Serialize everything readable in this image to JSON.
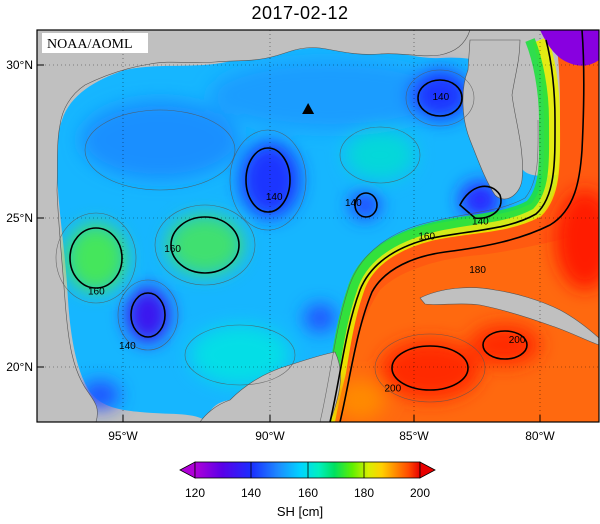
{
  "title": "2017-02-12",
  "source_label": "NOAA/AOML",
  "colorbar": {
    "label": "SH [cm]",
    "ticks": [
      "120",
      "140",
      "160",
      "180",
      "200"
    ],
    "range": [
      120,
      200
    ],
    "colors": [
      "#b000d8",
      "#5a00e8",
      "#1a2dff",
      "#1d8bff",
      "#00d4ff",
      "#00f0c0",
      "#00e060",
      "#60f000",
      "#d8f000",
      "#ffd000",
      "#ff8c00",
      "#ff4a00",
      "#e80000"
    ]
  },
  "axes": {
    "lat_labels": [
      "30°N",
      "25°N",
      "20°N"
    ],
    "lon_labels": [
      "95°W",
      "90°W",
      "85°W",
      "80°W"
    ]
  },
  "contour_labels": [
    {
      "text": "140",
      "lon": -83.6,
      "lat": 28.9
    },
    {
      "text": "140",
      "lon": -89.5,
      "lat": 25.6
    },
    {
      "text": "140",
      "lon": -86.7,
      "lat": 25.4
    },
    {
      "text": "140",
      "lon": -82.2,
      "lat": 24.8
    },
    {
      "text": "160",
      "lon": -93.1,
      "lat": 23.9
    },
    {
      "text": "160",
      "lon": -95.8,
      "lat": 22.5
    },
    {
      "text": "160",
      "lon": -84.1,
      "lat": 24.3
    },
    {
      "text": "180",
      "lon": -82.3,
      "lat": 23.2
    },
    {
      "text": "140",
      "lon": -94.7,
      "lat": 20.7
    },
    {
      "text": "200",
      "lon": -80.9,
      "lat": 20.9
    },
    {
      "text": "200",
      "lon": -85.3,
      "lat": 19.3
    }
  ],
  "marker": {
    "type": "triangle",
    "lon": -88.3,
    "lat": 28.5
  }
}
